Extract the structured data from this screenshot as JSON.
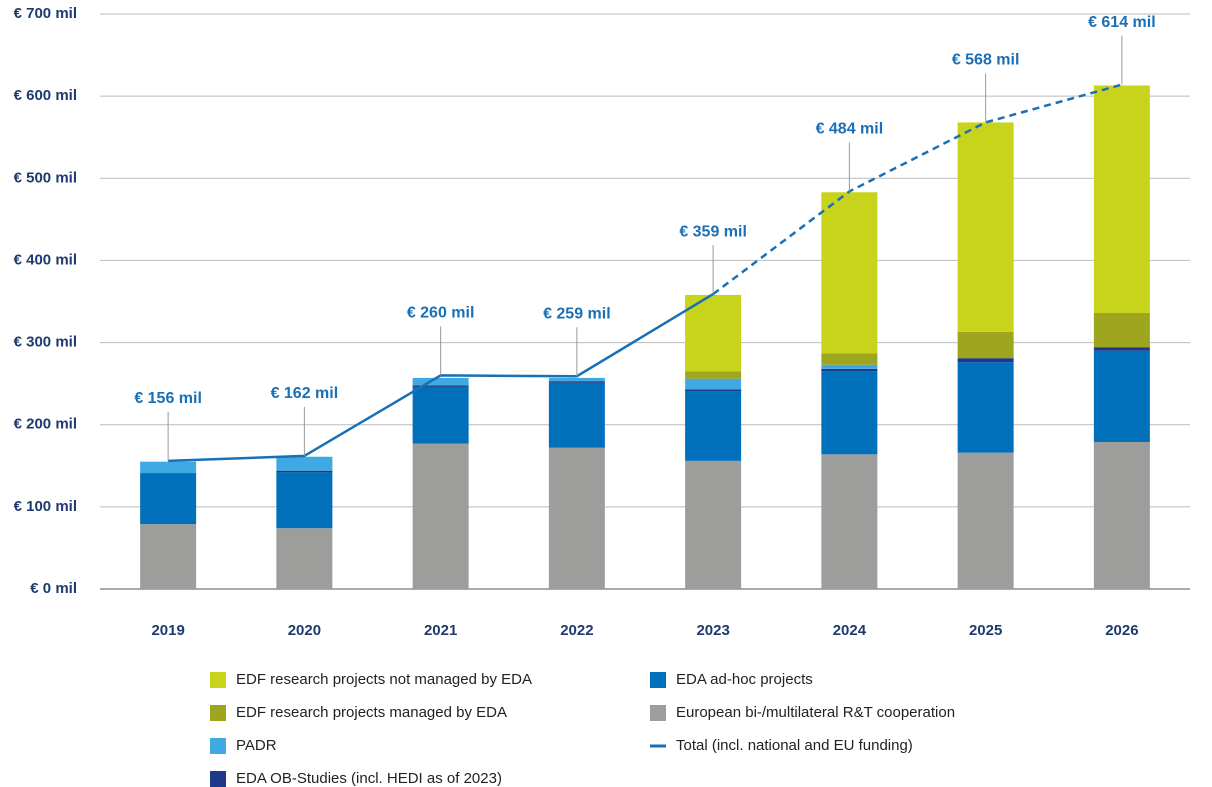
{
  "chart_data": {
    "type": "stacked_bar_line",
    "categories": [
      "2019",
      "2020",
      "2021",
      "2022",
      "2023",
      "2024",
      "2025",
      "2026"
    ],
    "series": [
      {
        "name": "European bi-/multilateral R&T cooperation",
        "color": "#9d9d9c",
        "values": [
          79,
          74,
          177,
          172,
          156,
          164,
          166,
          179
        ]
      },
      {
        "name": "EDA ad-hoc projects",
        "color": "#0070bb",
        "values": [
          61,
          68,
          69,
          79,
          85,
          101,
          110,
          111
        ]
      },
      {
        "name": "EDA OB-Studies (incl. HEDI as of 2023)",
        "color": "#1d3a8a",
        "values": [
          1,
          2,
          2,
          2,
          2,
          3,
          5,
          4
        ]
      },
      {
        "name": "PADR",
        "color": "#3fa9e4",
        "values": [
          14,
          17,
          9,
          4,
          13,
          5,
          0,
          0
        ]
      },
      {
        "name": "EDF research projects managed by EDA",
        "color": "#9ea51e",
        "values": [
          0,
          0,
          0,
          0,
          9,
          14,
          32,
          42
        ]
      },
      {
        "name": "EDF research projects not managed by EDA",
        "color": "#c8d41c",
        "values": [
          0,
          0,
          0,
          0,
          93,
          196,
          255,
          277
        ]
      }
    ],
    "line": {
      "name": "Total (incl. national and EU funding)",
      "color": "#1a6fb5",
      "values": [
        156,
        162,
        260,
        259,
        359,
        484,
        568,
        614
      ],
      "value_labels": [
        "€ 156 mil",
        "€ 162 mil",
        "€ 260 mil",
        "€ 259 mil",
        "€ 359 mil",
        "€ 484 mil",
        "€ 568 mil",
        "€ 614 mil"
      ],
      "dashed_from": "2023"
    },
    "ylim": [
      0,
      700
    ],
    "yticks": [
      {
        "value": 0,
        "label": "€ 0 mil"
      },
      {
        "value": 100,
        "label": "€ 100 mil"
      },
      {
        "value": 200,
        "label": "€ 200 mil"
      },
      {
        "value": 300,
        "label": "€ 300 mil"
      },
      {
        "value": 400,
        "label": "€ 400 mil"
      },
      {
        "value": 500,
        "label": "€ 500 mil"
      },
      {
        "value": 600,
        "label": "€ 600 mil"
      },
      {
        "value": 700,
        "label": "€ 700 mil"
      }
    ],
    "grid": true
  }
}
